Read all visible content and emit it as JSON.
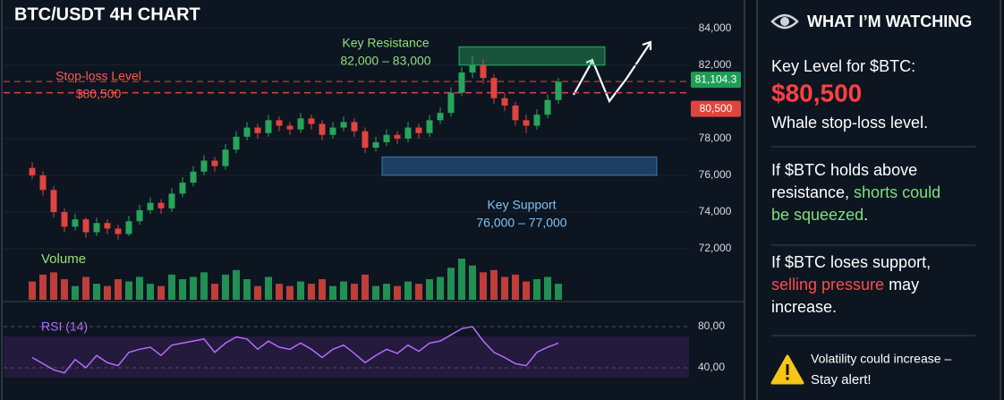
{
  "chart_data": {
    "type": "candlestick",
    "title": "BTC/USDT 4H CHART",
    "ylim": [
      70000,
      85500
    ],
    "yticks": [
      {
        "value": 72000,
        "label": "72,000"
      },
      {
        "value": 74000,
        "label": "74,000"
      },
      {
        "value": 76000,
        "label": "76,000"
      },
      {
        "value": 78000,
        "label": "78,000"
      },
      {
        "value": 82000,
        "label": "82,000"
      },
      {
        "value": 84000,
        "label": "84,000"
      }
    ],
    "grid": true,
    "up_color": "#26a65b",
    "down_color": "#e0443e",
    "ohlc": [
      [
        76400,
        76700,
        75800,
        76000
      ],
      [
        76000,
        76200,
        74900,
        75200
      ],
      [
        75200,
        75400,
        73700,
        74000
      ],
      [
        74000,
        74200,
        72900,
        73200
      ],
      [
        73200,
        73900,
        73000,
        73600
      ],
      [
        73600,
        73700,
        72600,
        72900
      ],
      [
        72900,
        73700,
        72700,
        73400
      ],
      [
        73400,
        73600,
        72800,
        73100
      ],
      [
        73100,
        73300,
        72500,
        72800
      ],
      [
        72800,
        73800,
        72700,
        73500
      ],
      [
        73500,
        74400,
        73300,
        74100
      ],
      [
        74100,
        74800,
        73900,
        74500
      ],
      [
        74500,
        74700,
        73900,
        74200
      ],
      [
        74200,
        75300,
        74000,
        75000
      ],
      [
        75000,
        75900,
        74800,
        75600
      ],
      [
        75600,
        76500,
        75400,
        76200
      ],
      [
        76200,
        77100,
        76000,
        76800
      ],
      [
        76800,
        77000,
        76200,
        76500
      ],
      [
        76500,
        77700,
        76300,
        77400
      ],
      [
        77400,
        78400,
        77200,
        78100
      ],
      [
        78100,
        78900,
        77900,
        78600
      ],
      [
        78600,
        78800,
        78000,
        78300
      ],
      [
        78300,
        79300,
        78100,
        79000
      ],
      [
        79000,
        79200,
        78400,
        78700
      ],
      [
        78700,
        78900,
        78200,
        78500
      ],
      [
        78500,
        79400,
        78300,
        79100
      ],
      [
        79100,
        79300,
        78500,
        78800
      ],
      [
        78800,
        79000,
        77900,
        78200
      ],
      [
        78200,
        78900,
        78000,
        78600
      ],
      [
        78600,
        79200,
        78400,
        78900
      ],
      [
        78900,
        79100,
        78100,
        78400
      ],
      [
        78400,
        78600,
        77200,
        77500
      ],
      [
        77500,
        78100,
        77300,
        77800
      ],
      [
        77800,
        78500,
        77600,
        78200
      ],
      [
        78200,
        78400,
        77700,
        78000
      ],
      [
        78000,
        78900,
        77800,
        78600
      ],
      [
        78600,
        78800,
        78000,
        78300
      ],
      [
        78300,
        79300,
        78100,
        79000
      ],
      [
        79000,
        79700,
        78800,
        79400
      ],
      [
        79400,
        80800,
        79200,
        80500
      ],
      [
        80500,
        81900,
        80300,
        81600
      ],
      [
        81600,
        82500,
        81300,
        82000
      ],
      [
        82000,
        82300,
        81000,
        81300
      ],
      [
        81300,
        81500,
        79900,
        80200
      ],
      [
        80200,
        80500,
        79500,
        79800
      ],
      [
        79800,
        80000,
        78700,
        79000
      ],
      [
        79000,
        79300,
        78300,
        78700
      ],
      [
        78700,
        79600,
        78500,
        79300
      ],
      [
        79300,
        80400,
        79100,
        80100
      ],
      [
        80100,
        81300,
        79900,
        81100
      ]
    ],
    "current_price": {
      "value": 81104.3,
      "label": "81,104.3",
      "color": "#1f9d55"
    },
    "stop_loss": {
      "value": 80500,
      "label": "80,500",
      "color": "#e0443e",
      "name": "Stop-loss Level",
      "text": "$80,500"
    },
    "resistance": {
      "name": "Key Resistance",
      "label": "82,000 – 83,000",
      "low": 82000,
      "high": 83000,
      "color": "#2ecc71"
    },
    "support": {
      "name": "Key Support",
      "label": "76,000 – 77,000",
      "low": 76000,
      "high": 77000,
      "color": "#3a8fd9"
    },
    "volume": {
      "label": "Volume",
      "values": [
        40,
        55,
        60,
        45,
        30,
        50,
        35,
        30,
        45,
        40,
        50,
        35,
        30,
        55,
        45,
        50,
        60,
        35,
        55,
        65,
        45,
        30,
        50,
        35,
        30,
        40,
        35,
        45,
        30,
        40,
        35,
        55,
        30,
        35,
        30,
        40,
        35,
        45,
        50,
        70,
        90,
        75,
        60,
        65,
        50,
        55,
        40,
        45,
        50,
        35
      ]
    },
    "rsi": {
      "label": "RSI (14)",
      "color": "#b36bff",
      "ylim": [
        20,
        100
      ],
      "yticks": [
        {
          "value": 40,
          "label": "40,00"
        },
        {
          "value": 80,
          "label": "80,00"
        }
      ],
      "values": [
        50,
        44,
        38,
        35,
        48,
        40,
        52,
        45,
        42,
        55,
        58,
        60,
        52,
        62,
        64,
        66,
        68,
        55,
        64,
        70,
        68,
        58,
        66,
        60,
        58,
        64,
        58,
        50,
        58,
        62,
        54,
        45,
        52,
        58,
        54,
        62,
        56,
        64,
        66,
        72,
        78,
        80,
        66,
        55,
        50,
        44,
        42,
        55,
        60,
        64
      ]
    }
  },
  "sidebar": {
    "title": "WHAT I’M WATCHING",
    "key_level": "Key Level for $BTC:",
    "price": "$80,500",
    "price_note": "Whale stop-loss level.",
    "scenarios": [
      [
        [
          {
            "text": "If $BTC holds above",
            "color": "#ffffff"
          }
        ],
        [
          {
            "text": "resistance, ",
            "color": "#ffffff"
          },
          {
            "text": "shorts could",
            "color": "#7ee07a"
          }
        ],
        [
          {
            "text": "be squeezed",
            "color": "#7ee07a"
          },
          {
            "text": ".",
            "color": "#ffffff"
          }
        ]
      ],
      [
        [
          {
            "text": "If $BTC loses support,",
            "color": "#ffffff"
          }
        ],
        [
          {
            "text": "selling pressure",
            "color": "#ff4a4a"
          },
          {
            "text": " may",
            "color": "#ffffff"
          }
        ],
        [
          {
            "text": "increase.",
            "color": "#ffffff"
          }
        ]
      ]
    ],
    "alert": [
      "Volatility could increase –",
      "Stay alert!"
    ]
  }
}
